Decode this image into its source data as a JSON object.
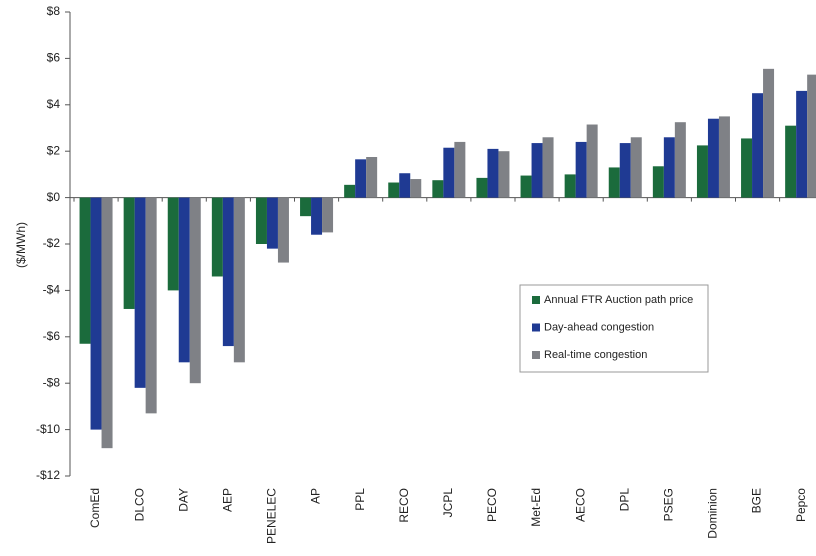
{
  "chart_data": {
    "type": "bar",
    "ylabel": "($/MWh)",
    "categories": [
      "ComEd",
      "DLCO",
      "DAY",
      "AEP",
      "PENELEC",
      "AP",
      "PPL",
      "RECO",
      "JCPL",
      "PECO",
      "Met-Ed",
      "AECO",
      "DPL",
      "PSEG",
      "Dominion",
      "BGE",
      "Pepco"
    ],
    "series": [
      {
        "name": "Annual FTR Auction path price",
        "color": "#1b6b3c",
        "values": [
          -6.3,
          -4.8,
          -4.0,
          -3.4,
          -2.0,
          -0.8,
          0.55,
          0.65,
          0.75,
          0.85,
          0.95,
          1.0,
          1.3,
          1.35,
          2.25,
          2.55,
          3.1
        ]
      },
      {
        "name": "Day-ahead congestion",
        "color": "#1f3a93",
        "values": [
          -10.0,
          -8.2,
          -7.1,
          -6.4,
          -2.2,
          -1.6,
          1.65,
          1.05,
          2.15,
          2.1,
          2.35,
          2.4,
          2.35,
          2.6,
          3.4,
          4.5,
          4.6
        ]
      },
      {
        "name": "Real-time congestion",
        "color": "#7f8186",
        "values": [
          -10.8,
          -9.3,
          -8.0,
          -7.1,
          -2.8,
          -1.5,
          1.75,
          0.8,
          2.4,
          2.0,
          2.6,
          3.15,
          2.6,
          3.25,
          3.5,
          5.55,
          5.3
        ]
      }
    ],
    "ylim": [
      -12,
      8
    ],
    "yticks": [
      {
        "value": -12,
        "label": "-$12"
      },
      {
        "value": -10,
        "label": "-$10"
      },
      {
        "value": -8,
        "label": "-$8"
      },
      {
        "value": -6,
        "label": "-$6"
      },
      {
        "value": -4,
        "label": "-$4"
      },
      {
        "value": -2,
        "label": "-$2"
      },
      {
        "value": 0,
        "label": "$0"
      },
      {
        "value": 2,
        "label": "$2"
      },
      {
        "value": 4,
        "label": "$4"
      },
      {
        "value": 6,
        "label": "$6"
      },
      {
        "value": 8,
        "label": "$8"
      }
    ],
    "grid": false,
    "legend": "right"
  }
}
